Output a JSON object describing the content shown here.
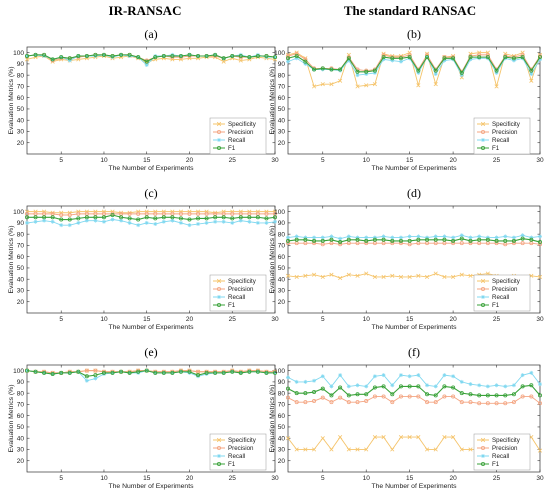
{
  "column_titles": [
    "IR-RANSAC",
    "The standard RANSAC"
  ],
  "legend": [
    {
      "name": "Specificity",
      "color": "#f5c46b",
      "marker": "x"
    },
    {
      "name": "Precision",
      "color": "#f4a582",
      "marker": "o"
    },
    {
      "name": "Recall",
      "color": "#80d8f0",
      "marker": "*"
    },
    {
      "name": "F1",
      "color": "#3aa23a",
      "marker": "o"
    }
  ],
  "chart_data": [
    {
      "panel": "(a)",
      "type": "line",
      "xlabel": "The Number of Experiments",
      "ylabel": "Evaluation Metrics (%)",
      "xlim": [
        1,
        30
      ],
      "ylim": [
        10,
        105
      ],
      "xticks": [
        5,
        10,
        15,
        20,
        25,
        30
      ],
      "yticks": [
        20,
        30,
        40,
        50,
        60,
        70,
        80,
        90,
        100
      ],
      "x": [
        1,
        2,
        3,
        4,
        5,
        6,
        7,
        8,
        9,
        10,
        11,
        12,
        13,
        14,
        15,
        16,
        17,
        18,
        19,
        20,
        21,
        22,
        23,
        24,
        25,
        26,
        27,
        28,
        29,
        30
      ],
      "series": [
        {
          "name": "Specificity",
          "values": [
            94,
            96,
            97,
            92,
            94,
            93,
            94,
            95,
            96,
            97,
            95,
            96,
            97,
            95,
            91,
            94,
            95,
            94,
            94,
            95,
            95,
            96,
            96,
            92,
            95,
            93,
            94,
            96,
            95,
            94
          ]
        },
        {
          "name": "Precision",
          "values": [
            97,
            98,
            98,
            93,
            95,
            95,
            96,
            97,
            98,
            98,
            97,
            98,
            98,
            96,
            93,
            96,
            97,
            96,
            96,
            97,
            97,
            97,
            97,
            95,
            97,
            96,
            96,
            97,
            97,
            96
          ]
        },
        {
          "name": "Recall",
          "values": [
            97,
            98,
            97,
            94,
            96,
            93,
            97,
            97,
            97,
            98,
            96,
            98,
            97,
            96,
            89,
            97,
            97,
            98,
            97,
            98,
            97,
            97,
            98,
            95,
            97,
            98,
            96,
            98,
            96,
            96
          ]
        },
        {
          "name": "F1",
          "values": [
            97,
            98,
            98,
            94,
            96,
            95,
            97,
            97,
            98,
            98,
            97,
            98,
            98,
            96,
            92,
            96,
            97,
            97,
            97,
            98,
            97,
            97,
            98,
            95,
            97,
            97,
            96,
            97,
            97,
            96
          ]
        }
      ]
    },
    {
      "panel": "(b)",
      "type": "line",
      "xlabel": "The Number of Experiments",
      "ylabel": "Evaluation Metrics (%)",
      "xlim": [
        1,
        30
      ],
      "ylim": [
        10,
        105
      ],
      "xticks": [
        5,
        10,
        15,
        20,
        25,
        30
      ],
      "yticks": [
        20,
        30,
        40,
        50,
        60,
        70,
        80,
        90,
        100
      ],
      "x": [
        1,
        2,
        3,
        4,
        5,
        6,
        7,
        8,
        9,
        10,
        11,
        12,
        13,
        14,
        15,
        16,
        17,
        18,
        19,
        20,
        21,
        22,
        23,
        24,
        25,
        26,
        27,
        28,
        29,
        30
      ],
      "series": [
        {
          "name": "Specificity",
          "values": [
            98,
            100,
            95,
            70,
            72,
            72,
            75,
            98,
            70,
            71,
            72,
            99,
            97,
            97,
            100,
            71,
            99,
            72,
            96,
            97,
            78,
            99,
            100,
            100,
            70,
            99,
            97,
            100,
            75,
            98
          ]
        },
        {
          "name": "Precision",
          "values": [
            97,
            99,
            94,
            86,
            86,
            86,
            85,
            96,
            85,
            84,
            85,
            98,
            96,
            96,
            98,
            85,
            98,
            85,
            96,
            96,
            83,
            97,
            98,
            98,
            85,
            97,
            96,
            98,
            85,
            97
          ]
        },
        {
          "name": "Recall",
          "values": [
            92,
            95,
            90,
            85,
            85,
            85,
            84,
            93,
            80,
            81,
            82,
            94,
            93,
            92,
            95,
            82,
            96,
            81,
            93,
            94,
            80,
            94,
            95,
            95,
            82,
            95,
            93,
            95,
            81,
            94
          ]
        },
        {
          "name": "F1",
          "values": [
            95,
            97,
            92,
            85,
            86,
            85,
            85,
            95,
            83,
            83,
            84,
            96,
            95,
            95,
            96,
            84,
            96,
            84,
            95,
            95,
            82,
            96,
            96,
            96,
            84,
            96,
            95,
            96,
            84,
            96
          ]
        }
      ]
    },
    {
      "panel": "(c)",
      "type": "line",
      "xlabel": "The Number of Experiments",
      "ylabel": "Evaluation Metrics (%)",
      "xlim": [
        1,
        30
      ],
      "ylim": [
        10,
        105
      ],
      "xticks": [
        5,
        10,
        15,
        20,
        25,
        30
      ],
      "yticks": [
        20,
        30,
        40,
        50,
        60,
        70,
        80,
        90,
        100
      ],
      "x": [
        1,
        2,
        3,
        4,
        5,
        6,
        7,
        8,
        9,
        10,
        11,
        12,
        13,
        14,
        15,
        16,
        17,
        18,
        19,
        20,
        21,
        22,
        23,
        24,
        25,
        26,
        27,
        28,
        29,
        30
      ],
      "series": [
        {
          "name": "Specificity",
          "values": [
            100,
            100,
            100,
            99,
            99,
            99,
            100,
            100,
            100,
            100,
            100,
            99,
            99,
            100,
            100,
            100,
            100,
            100,
            100,
            100,
            100,
            100,
            99,
            100,
            100,
            100,
            100,
            100,
            100,
            100
          ]
        },
        {
          "name": "Precision",
          "values": [
            98,
            98,
            98,
            98,
            97,
            97,
            98,
            98,
            98,
            98,
            98,
            98,
            98,
            98,
            98,
            98,
            98,
            98,
            98,
            98,
            98,
            98,
            98,
            98,
            98,
            98,
            98,
            98,
            98,
            98
          ]
        },
        {
          "name": "Recall",
          "values": [
            90,
            91,
            92,
            91,
            88,
            88,
            90,
            92,
            92,
            91,
            93,
            92,
            90,
            88,
            90,
            89,
            91,
            92,
            90,
            88,
            89,
            90,
            91,
            91,
            90,
            92,
            91,
            90,
            90,
            91
          ]
        },
        {
          "name": "F1",
          "values": [
            95,
            95,
            95,
            95,
            93,
            93,
            94,
            95,
            95,
            95,
            97,
            95,
            94,
            93,
            95,
            94,
            95,
            95,
            94,
            93,
            94,
            94,
            95,
            95,
            94,
            95,
            95,
            95,
            94,
            95
          ]
        }
      ]
    },
    {
      "panel": "(d)",
      "type": "line",
      "xlabel": "The Number of Experiments",
      "ylabel": "Evaluation Metrics (%)",
      "xlim": [
        1,
        30
      ],
      "ylim": [
        10,
        105
      ],
      "xticks": [
        5,
        10,
        15,
        20,
        25,
        30
      ],
      "yticks": [
        20,
        30,
        40,
        50,
        60,
        70,
        80,
        90,
        100
      ],
      "x": [
        1,
        2,
        3,
        4,
        5,
        6,
        7,
        8,
        9,
        10,
        11,
        12,
        13,
        14,
        15,
        16,
        17,
        18,
        19,
        20,
        21,
        22,
        23,
        24,
        25,
        26,
        27,
        28,
        29,
        30
      ],
      "series": [
        {
          "name": "Specificity",
          "values": [
            43,
            42,
            43,
            44,
            42,
            44,
            41,
            44,
            43,
            45,
            42,
            42,
            43,
            42,
            42,
            43,
            42,
            45,
            42,
            42,
            44,
            43,
            44,
            45,
            43,
            42,
            43,
            42,
            43,
            42
          ]
        },
        {
          "name": "Precision",
          "values": [
            72,
            72,
            72,
            72,
            71,
            72,
            71,
            72,
            72,
            72,
            72,
            72,
            72,
            72,
            71,
            72,
            72,
            72,
            72,
            72,
            72,
            72,
            72,
            72,
            72,
            71,
            72,
            72,
            72,
            71
          ]
        },
        {
          "name": "Recall",
          "values": [
            77,
            78,
            77,
            77,
            77,
            78,
            76,
            78,
            77,
            77,
            77,
            78,
            77,
            77,
            78,
            78,
            77,
            78,
            78,
            77,
            79,
            77,
            78,
            77,
            77,
            78,
            77,
            79,
            77,
            78
          ]
        },
        {
          "name": "F1",
          "values": [
            74,
            75,
            75,
            74,
            74,
            75,
            73,
            75,
            75,
            74,
            75,
            75,
            74,
            74,
            74,
            75,
            75,
            75,
            75,
            74,
            76,
            74,
            75,
            75,
            74,
            74,
            74,
            76,
            75,
            73
          ]
        }
      ]
    },
    {
      "panel": "(e)",
      "type": "line",
      "xlabel": "The Number of Experiments",
      "ylabel": "Evaluation Metrics (%)",
      "xlim": [
        1,
        30
      ],
      "ylim": [
        10,
        105
      ],
      "xticks": [
        5,
        10,
        15,
        20,
        25,
        30
      ],
      "yticks": [
        20,
        30,
        40,
        50,
        60,
        70,
        80,
        90,
        100
      ],
      "x": [
        1,
        2,
        3,
        4,
        5,
        6,
        7,
        8,
        9,
        10,
        11,
        12,
        13,
        14,
        15,
        16,
        17,
        18,
        19,
        20,
        21,
        22,
        23,
        24,
        25,
        26,
        27,
        28,
        29,
        30
      ],
      "series": [
        {
          "name": "Specificity",
          "values": [
            100,
            99,
            99,
            98,
            98,
            99,
            99,
            100,
            100,
            99,
            99,
            99,
            99,
            100,
            100,
            99,
            99,
            99,
            100,
            100,
            99,
            99,
            99,
            99,
            100,
            99,
            100,
            100,
            99,
            99
          ]
        },
        {
          "name": "Precision",
          "values": [
            100,
            99,
            99,
            98,
            98,
            99,
            99,
            100,
            100,
            99,
            99,
            99,
            99,
            100,
            100,
            99,
            99,
            99,
            100,
            100,
            99,
            99,
            99,
            99,
            100,
            99,
            100,
            100,
            99,
            99
          ]
        },
        {
          "name": "Recall",
          "values": [
            100,
            99,
            98,
            97,
            98,
            98,
            99,
            91,
            93,
            97,
            98,
            99,
            98,
            98,
            100,
            98,
            98,
            98,
            99,
            98,
            95,
            97,
            98,
            98,
            99,
            98,
            99,
            99,
            98,
            98
          ]
        },
        {
          "name": "F1",
          "values": [
            100,
            99,
            98,
            97,
            98,
            98,
            99,
            95,
            96,
            98,
            98,
            99,
            98,
            99,
            100,
            98,
            98,
            98,
            99,
            99,
            96,
            98,
            98,
            98,
            99,
            98,
            99,
            99,
            98,
            98
          ]
        }
      ]
    },
    {
      "panel": "(f)",
      "type": "line",
      "xlabel": "The Number of Experiments",
      "ylabel": "Evaluation Metrics (%)",
      "xlim": [
        1,
        30
      ],
      "ylim": [
        10,
        105
      ],
      "xticks": [
        5,
        10,
        15,
        20,
        25,
        30
      ],
      "yticks": [
        20,
        30,
        40,
        50,
        60,
        70,
        80,
        90,
        100
      ],
      "x": [
        1,
        2,
        3,
        4,
        5,
        6,
        7,
        8,
        9,
        10,
        11,
        12,
        13,
        14,
        15,
        16,
        17,
        18,
        19,
        20,
        21,
        22,
        23,
        24,
        25,
        26,
        27,
        28,
        29,
        30
      ],
      "series": [
        {
          "name": "Specificity",
          "values": [
            40,
            30,
            30,
            30,
            40,
            30,
            41,
            30,
            30,
            30,
            41,
            41,
            30,
            41,
            41,
            41,
            30,
            30,
            41,
            41,
            30,
            30,
            30,
            30,
            30,
            30,
            30,
            41,
            41,
            29
          ]
        },
        {
          "name": "Precision",
          "values": [
            76,
            72,
            72,
            73,
            76,
            72,
            76,
            72,
            72,
            73,
            77,
            77,
            72,
            77,
            77,
            77,
            72,
            72,
            77,
            77,
            72,
            72,
            71,
            71,
            71,
            71,
            72,
            77,
            77,
            71
          ]
        },
        {
          "name": "Recall",
          "values": [
            94,
            90,
            90,
            91,
            95,
            86,
            96,
            86,
            87,
            86,
            95,
            96,
            87,
            96,
            95,
            96,
            87,
            86,
            96,
            95,
            90,
            88,
            87,
            86,
            87,
            86,
            87,
            96,
            98,
            88
          ]
        },
        {
          "name": "F1",
          "values": [
            84,
            80,
            80,
            81,
            84,
            78,
            85,
            78,
            79,
            79,
            85,
            86,
            79,
            86,
            86,
            86,
            79,
            78,
            86,
            85,
            80,
            79,
            78,
            78,
            78,
            78,
            79,
            86,
            87,
            78
          ]
        }
      ]
    }
  ]
}
